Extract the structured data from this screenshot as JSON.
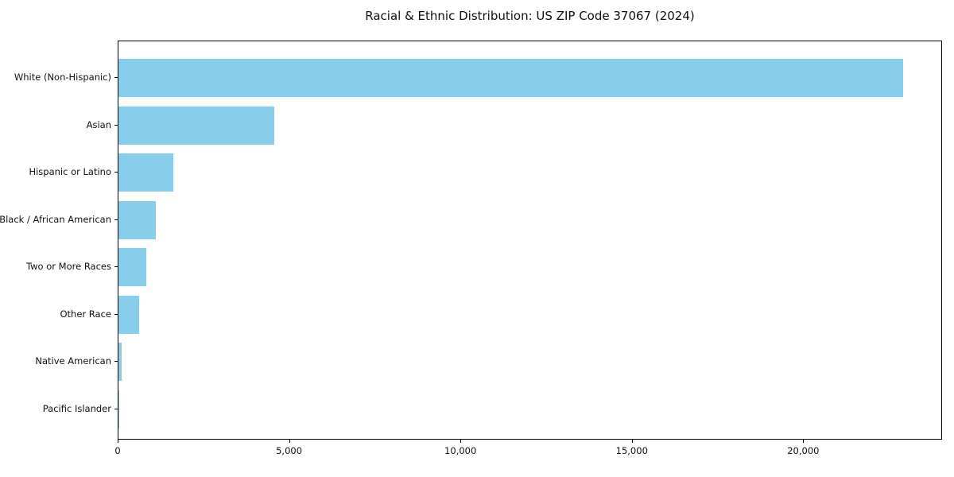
{
  "title": "Racial & Ethnic Distribution: US ZIP Code 37067 (2024)",
  "chart_data": {
    "type": "bar",
    "orientation": "horizontal",
    "title": "Racial & Ethnic Distribution: US ZIP Code 37067 (2024)",
    "categories": [
      "White (Non-Hispanic)",
      "Asian",
      "Hispanic or Latino",
      "Black / African American",
      "Two or More Races",
      "Other Race",
      "Native American",
      "Pacific Islander"
    ],
    "values": [
      22900,
      4550,
      1610,
      1080,
      820,
      610,
      100,
      20
    ],
    "xlabel": "",
    "ylabel": "",
    "xlim": [
      0,
      24050
    ],
    "x_ticks": [
      0,
      5000,
      10000,
      15000,
      20000
    ],
    "x_tick_labels": [
      "0",
      "5,000",
      "10,000",
      "15,000",
      "20,000"
    ],
    "bar_color": "#87CEEB",
    "plot_background": "#ffffff",
    "figure_background": "#ffffff",
    "frame_color": "#000000",
    "grid": false,
    "legend": false
  }
}
